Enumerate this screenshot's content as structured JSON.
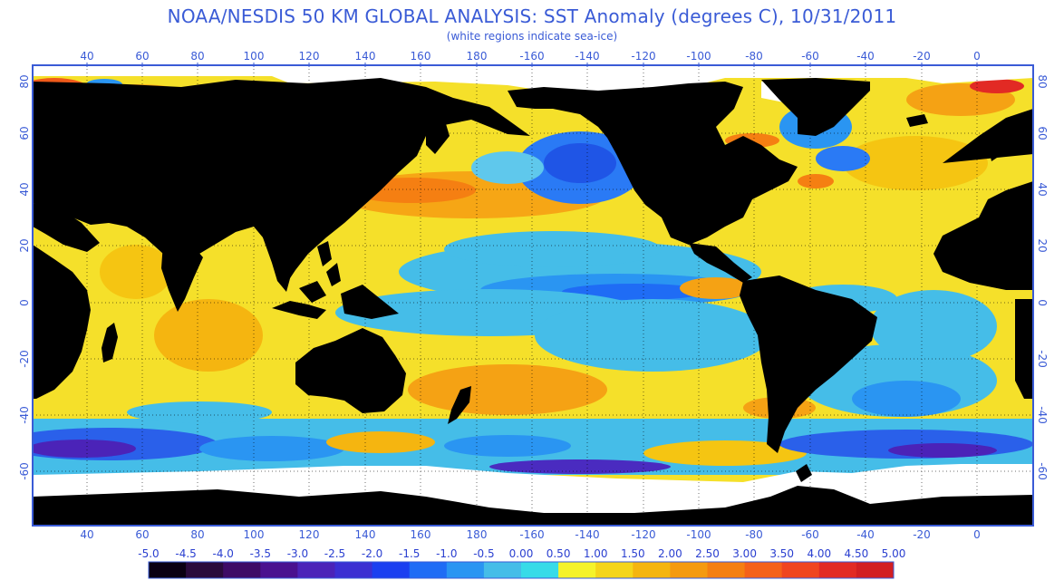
{
  "title": "NOAA/NESDIS 50 KM GLOBAL ANALYSIS: SST Anomaly (degrees C), 10/31/2011",
  "subtitle": "(white regions indicate sea-ice)",
  "longitude_ticks": [
    "40",
    "60",
    "80",
    "100",
    "120",
    "140",
    "160",
    "180",
    "-160",
    "-140",
    "-120",
    "-100",
    "-80",
    "-60",
    "-40",
    "-20",
    "0"
  ],
  "latitude_ticks": [
    "80",
    "60",
    "40",
    "20",
    "0",
    "-20",
    "-40",
    "-60"
  ],
  "legend": {
    "labels": [
      "-5.0",
      "-4.5",
      "-4.0",
      "-3.5",
      "-3.0",
      "-2.5",
      "-2.0",
      "-1.5",
      "-1.0",
      "-0.5",
      "0.00",
      "0.50",
      "1.00",
      "1.50",
      "2.00",
      "2.50",
      "3.00",
      "3.50",
      "4.00",
      "4.50",
      "5.00"
    ],
    "colors": [
      "#0a0012",
      "#2a0a3c",
      "#3e0a66",
      "#4a118f",
      "#4b23b8",
      "#3b2fd2",
      "#1a3ff0",
      "#1f6cf5",
      "#2a95f2",
      "#45bde8",
      "#37dbe8",
      "#f5f32a",
      "#f5d51a",
      "#f5b510",
      "#f59a10",
      "#f57f12",
      "#f5611a",
      "#f04520",
      "#e22a24",
      "#d21f22"
    ]
  },
  "colors": {
    "land": "#000000",
    "sea_ice": "#ffffff",
    "frame": "#3a5bd6"
  }
}
